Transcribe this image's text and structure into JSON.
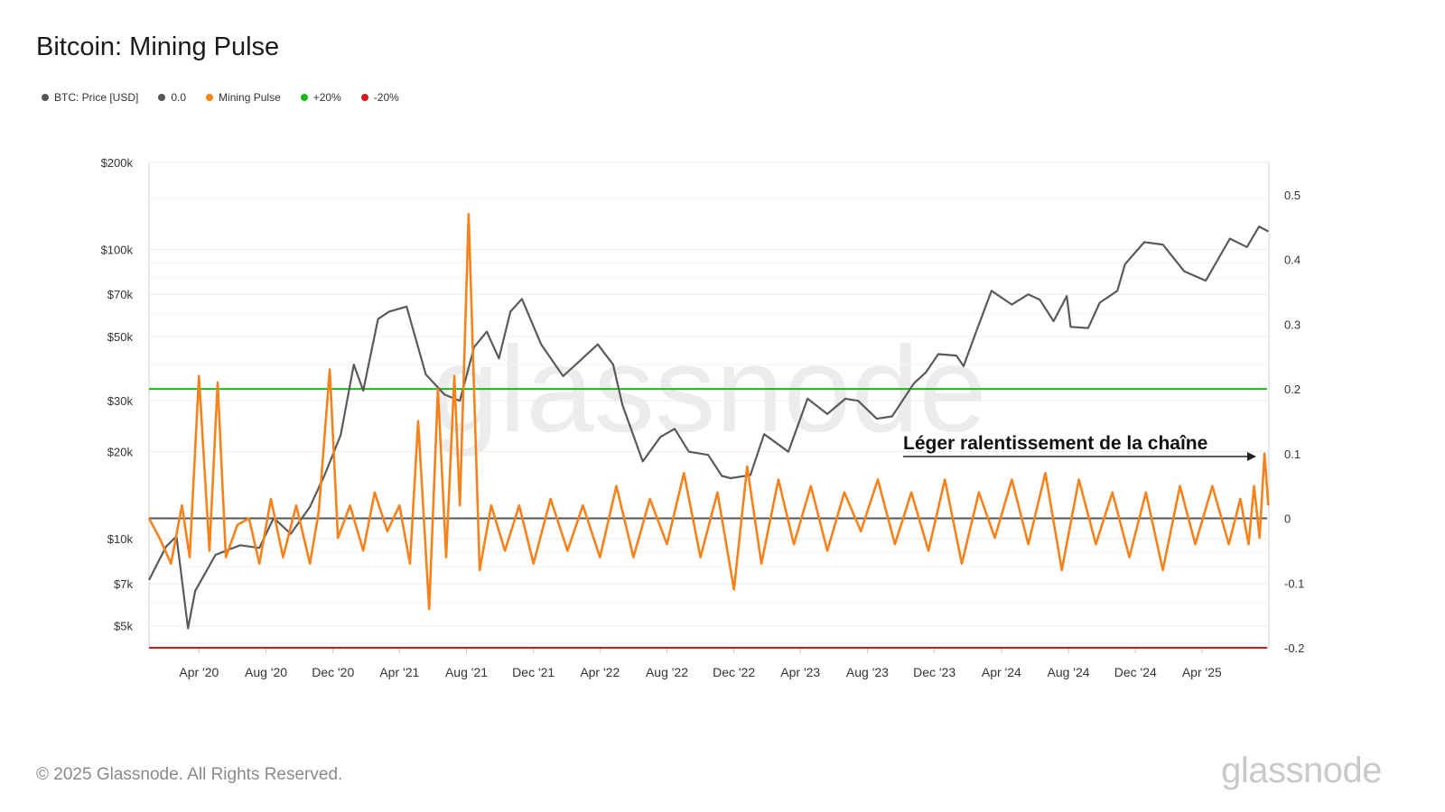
{
  "header": {
    "title": "Bitcoin: Mining Pulse"
  },
  "legend": [
    {
      "label": "BTC: Price [USD]",
      "color": "#555555"
    },
    {
      "label": "0.0",
      "color": "#555555"
    },
    {
      "label": "Mining Pulse",
      "color": "#f7821b"
    },
    {
      "label": "+20%",
      "color": "#1ab91a"
    },
    {
      "label": "-20%",
      "color": "#d21a1a"
    }
  ],
  "footer": {
    "copyright": "© 2025 Glassnode. All Rights Reserved.",
    "logo": "glassnode"
  },
  "watermark": "glassnode",
  "chart_data": {
    "type": "line",
    "title": "Bitcoin: Mining Pulse",
    "annotation": "Léger ralentissement de la chaîne",
    "x_tick_labels": [
      "Apr '20",
      "Aug '20",
      "Dec '20",
      "Apr '21",
      "Aug '21",
      "Dec '21",
      "Apr '22",
      "Aug '22",
      "Dec '22",
      "Apr '23",
      "Aug '23",
      "Dec '23",
      "Apr '24",
      "Aug '24",
      "Dec '24",
      "Apr '25"
    ],
    "x_tick_dates": [
      "2020-04-01",
      "2020-08-01",
      "2020-12-01",
      "2021-04-01",
      "2021-08-01",
      "2021-12-01",
      "2022-04-01",
      "2022-08-01",
      "2022-12-01",
      "2023-04-01",
      "2023-08-01",
      "2023-12-01",
      "2024-04-01",
      "2024-08-01",
      "2024-12-01",
      "2025-04-01"
    ],
    "xlim": [
      "2020-01-01",
      "2025-08-01"
    ],
    "y_left": {
      "scale": "log",
      "label": "",
      "ylim": [
        4200,
        200000
      ],
      "ticks": [
        5000,
        7000,
        10000,
        20000,
        30000,
        50000,
        70000,
        100000,
        200000
      ],
      "tick_labels": [
        "$5k",
        "$7k",
        "$10k",
        "$20k",
        "$30k",
        "$50k",
        "$70k",
        "$100k",
        "$200k"
      ]
    },
    "y_right": {
      "scale": "linear",
      "label": "",
      "ylim": [
        -0.2,
        0.55
      ],
      "ticks": [
        -0.2,
        -0.1,
        0,
        0.1,
        0.2,
        0.3,
        0.4,
        0.5
      ],
      "tick_labels": [
        "-0.2",
        "-0.1",
        "0",
        "0.1",
        "0.2",
        "0.3",
        "0.4",
        "0.5"
      ]
    },
    "reference_lines": [
      {
        "name": "0.0",
        "value": 0.0,
        "color": "#555555"
      },
      {
        "name": "+20%",
        "value": 0.2,
        "color": "#1ab91a"
      },
      {
        "name": "-20%",
        "value": -0.2,
        "color": "#d21a1a"
      }
    ],
    "series": [
      {
        "name": "BTC: Price [USD]",
        "axis": "left",
        "color": "#5a5a5a",
        "x": [
          "2020-01-01",
          "2020-02-01",
          "2020-02-20",
          "2020-03-12",
          "2020-03-25",
          "2020-05-01",
          "2020-06-15",
          "2020-07-20",
          "2020-08-15",
          "2020-09-15",
          "2020-10-20",
          "2020-11-15",
          "2020-12-15",
          "2021-01-08",
          "2021-01-25",
          "2021-02-21",
          "2021-03-13",
          "2021-04-14",
          "2021-05-19",
          "2021-06-22",
          "2021-07-20",
          "2021-08-15",
          "2021-09-07",
          "2021-09-29",
          "2021-10-20",
          "2021-11-10",
          "2021-12-15",
          "2022-01-24",
          "2022-03-28",
          "2022-04-25",
          "2022-05-12",
          "2022-06-18",
          "2022-07-20",
          "2022-08-15",
          "2022-09-10",
          "2022-10-15",
          "2022-11-09",
          "2022-11-25",
          "2022-12-31",
          "2023-01-25",
          "2023-03-10",
          "2023-04-14",
          "2023-05-20",
          "2023-06-22",
          "2023-07-15",
          "2023-08-18",
          "2023-09-15",
          "2023-10-25",
          "2023-11-15",
          "2023-12-08",
          "2024-01-10",
          "2024-01-23",
          "2024-02-15",
          "2024-03-14",
          "2024-04-20",
          "2024-05-20",
          "2024-06-10",
          "2024-07-05",
          "2024-07-29",
          "2024-08-05",
          "2024-09-06",
          "2024-09-27",
          "2024-10-29",
          "2024-11-12",
          "2024-12-17",
          "2025-01-20",
          "2025-02-28",
          "2025-04-08",
          "2025-05-22",
          "2025-06-22",
          "2025-07-14",
          "2025-07-31"
        ],
        "values": [
          7200,
          9400,
          10200,
          4900,
          6600,
          8800,
          9500,
          9300,
          11800,
          10400,
          12900,
          16500,
          22800,
          40000,
          32500,
          57500,
          61000,
          63500,
          37000,
          31500,
          30000,
          46000,
          52000,
          42000,
          61000,
          67500,
          47000,
          36500,
          47000,
          40000,
          29000,
          18500,
          22500,
          24000,
          20000,
          19500,
          16500,
          16200,
          16600,
          23000,
          20000,
          30500,
          27000,
          30500,
          30000,
          26000,
          26500,
          34500,
          37500,
          43500,
          43000,
          39500,
          52000,
          72000,
          64500,
          70000,
          67000,
          56500,
          69000,
          54000,
          53500,
          65500,
          72000,
          89000,
          106000,
          104000,
          84000,
          78000,
          109000,
          102000,
          120000,
          115500
        ]
      },
      {
        "name": "Mining Pulse",
        "axis": "right",
        "color": "#f7821b",
        "x": [
          "2020-01-01",
          "2020-01-20",
          "2020-02-10",
          "2020-03-01",
          "2020-03-15",
          "2020-04-01",
          "2020-04-20",
          "2020-05-05",
          "2020-05-20",
          "2020-06-10",
          "2020-07-01",
          "2020-07-20",
          "2020-08-10",
          "2020-09-01",
          "2020-09-25",
          "2020-10-20",
          "2020-11-05",
          "2020-11-25",
          "2020-12-10",
          "2021-01-01",
          "2021-01-25",
          "2021-02-15",
          "2021-03-10",
          "2021-04-01",
          "2021-04-20",
          "2021-05-05",
          "2021-05-25",
          "2021-06-10",
          "2021-06-25",
          "2021-07-10",
          "2021-07-20",
          "2021-08-05",
          "2021-08-25",
          "2021-09-15",
          "2021-10-10",
          "2021-11-05",
          "2021-12-01",
          "2022-01-01",
          "2022-02-01",
          "2022-03-01",
          "2022-04-01",
          "2022-05-01",
          "2022-06-01",
          "2022-07-01",
          "2022-08-01",
          "2022-09-01",
          "2022-10-01",
          "2022-11-01",
          "2022-12-01",
          "2022-12-25",
          "2023-01-20",
          "2023-02-20",
          "2023-03-20",
          "2023-04-20",
          "2023-05-20",
          "2023-06-20",
          "2023-07-20",
          "2023-08-20",
          "2023-09-20",
          "2023-10-20",
          "2023-11-20",
          "2023-12-20",
          "2024-01-20",
          "2024-02-20",
          "2024-03-20",
          "2024-04-20",
          "2024-05-20",
          "2024-06-20",
          "2024-07-20",
          "2024-08-20",
          "2024-09-20",
          "2024-10-20",
          "2024-11-20",
          "2024-12-20",
          "2025-01-20",
          "2025-02-20",
          "2025-03-20",
          "2025-04-20",
          "2025-05-20",
          "2025-06-10",
          "2025-06-25",
          "2025-07-05",
          "2025-07-15",
          "2025-07-24",
          "2025-07-31"
        ],
        "values": [
          0.0,
          -0.03,
          -0.07,
          0.02,
          -0.06,
          0.22,
          -0.05,
          0.21,
          -0.06,
          -0.01,
          0.0,
          -0.07,
          0.03,
          -0.06,
          0.02,
          -0.07,
          0.01,
          0.23,
          -0.03,
          0.02,
          -0.05,
          0.04,
          -0.02,
          0.02,
          -0.07,
          0.15,
          -0.14,
          0.2,
          -0.06,
          0.22,
          0.02,
          0.47,
          -0.08,
          0.02,
          -0.05,
          0.02,
          -0.07,
          0.03,
          -0.05,
          0.02,
          -0.06,
          0.05,
          -0.06,
          0.03,
          -0.04,
          0.07,
          -0.06,
          0.04,
          -0.11,
          0.08,
          -0.07,
          0.06,
          -0.04,
          0.05,
          -0.05,
          0.04,
          -0.02,
          0.06,
          -0.04,
          0.04,
          -0.05,
          0.06,
          -0.07,
          0.04,
          -0.03,
          0.06,
          -0.04,
          0.07,
          -0.08,
          0.06,
          -0.04,
          0.04,
          -0.06,
          0.04,
          -0.08,
          0.05,
          -0.04,
          0.05,
          -0.04,
          0.03,
          -0.04,
          0.05,
          -0.03,
          0.1,
          0.02
        ]
      }
    ]
  }
}
